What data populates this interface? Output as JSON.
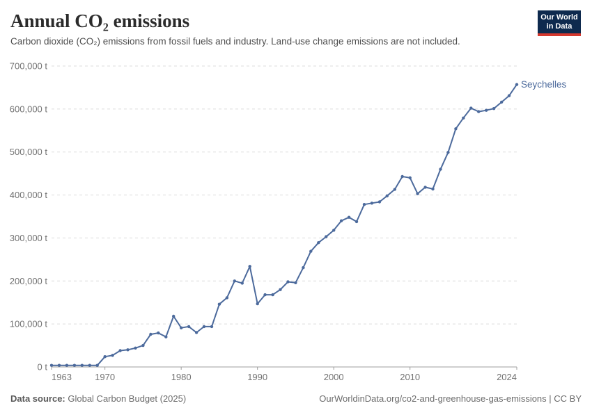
{
  "header": {
    "title": "Annual CO₂ emissions",
    "subtitle": "Carbon dioxide (CO₂) emissions from fossil fuels and industry. Land-use change emissions are not included."
  },
  "logo": {
    "line1": "Our World",
    "line2": "in Data"
  },
  "footer": {
    "source_label": "Data source:",
    "source_value": " Global Carbon Budget (2025)",
    "link": "OurWorldinData.org/co2-and-greenhouse-gas-emissions | CC BY"
  },
  "colors": {
    "line": "#4C6A9C",
    "series_label": "#4C6A9C",
    "grid": "#dcdcdc",
    "axis": "#9e9e9e",
    "tick_text": "#737373",
    "title_text": "#2b2b2b",
    "subtitle_text": "#4e4e4e",
    "logo_bg": "#0e2a4e",
    "logo_red": "#d5382e"
  },
  "chart_data": {
    "type": "line",
    "title": "Annual CO₂ emissions",
    "xlabel": "",
    "ylabel": "",
    "unit": "t",
    "grid": "horizontal-dashed",
    "legend_position": "end-of-line-label",
    "xlim": [
      1963,
      2024
    ],
    "ylim": [
      0,
      700000
    ],
    "x_ticks": [
      1963,
      1970,
      1980,
      1990,
      2000,
      2010,
      2024
    ],
    "y_ticks": [
      0,
      100000,
      200000,
      300000,
      400000,
      500000,
      600000,
      700000
    ],
    "y_tick_labels": [
      "0 t",
      "100,000 t",
      "200,000 t",
      "300,000 t",
      "400,000 t",
      "500,000 t",
      "600,000 t",
      "700,000 t"
    ],
    "x": [
      1963,
      1964,
      1965,
      1966,
      1967,
      1968,
      1969,
      1970,
      1971,
      1972,
      1973,
      1974,
      1975,
      1976,
      1977,
      1978,
      1979,
      1980,
      1981,
      1982,
      1983,
      1984,
      1985,
      1986,
      1987,
      1988,
      1989,
      1990,
      1991,
      1992,
      1993,
      1994,
      1995,
      1996,
      1997,
      1998,
      1999,
      2000,
      2001,
      2002,
      2003,
      2004,
      2005,
      2006,
      2007,
      2008,
      2009,
      2010,
      2011,
      2012,
      2013,
      2014,
      2015,
      2016,
      2017,
      2018,
      2019,
      2020,
      2021,
      2022,
      2023,
      2024
    ],
    "series": [
      {
        "name": "Seychelles",
        "color": "#4C6A9C",
        "values": [
          3700,
          3700,
          3700,
          3700,
          3700,
          3700,
          3700,
          24000,
          27000,
          38000,
          40000,
          44000,
          50000,
          76000,
          79000,
          70000,
          118000,
          91000,
          94000,
          80000,
          94000,
          94000,
          146000,
          161000,
          200000,
          195000,
          234000,
          147000,
          168000,
          168000,
          180000,
          198000,
          196000,
          231000,
          269000,
          289000,
          303000,
          318000,
          340000,
          348000,
          338000,
          378000,
          381000,
          384000,
          398000,
          413000,
          443000,
          440000,
          403000,
          418000,
          414000,
          460000,
          499000,
          554000,
          579000,
          602000,
          594000,
          597000,
          601000,
          616000,
          631000,
          657000
        ]
      }
    ]
  }
}
